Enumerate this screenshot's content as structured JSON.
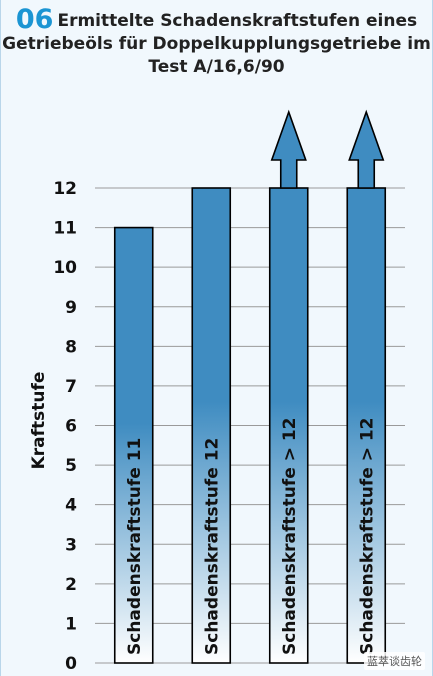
{
  "figure_number": "06",
  "title_line1": "Ermittelte Schadenskraftstufen eines",
  "title_line2": "Getriebeöls für Doppelkupplungsgetriebe im",
  "title_line3": "Test A/16,6/90",
  "watermark": "蓝萃谈齿轮",
  "colors": {
    "accent": "#1b95d3",
    "bar_dark": "#3f8cc1",
    "bar_light": "#ffffff",
    "grid": "#9a9a9a"
  },
  "chart_data": {
    "type": "bar",
    "title": "Ermittelte Schadenskraftstufen eines Getriebeöls für Doppelkupplungsgetriebe im Test A/16,6/90",
    "ylabel": "Kraftstufe",
    "ylim": [
      0,
      12
    ],
    "yticks": [
      0,
      1,
      2,
      3,
      4,
      5,
      6,
      7,
      8,
      9,
      10,
      11,
      12
    ],
    "grid": true,
    "categories": [
      "Schadenskraftstufe 11",
      "Schadenskraftstufe 12",
      "Schadenskraftstufe > 12",
      "Schadenskraftstufe > 12"
    ],
    "values": [
      11,
      12,
      12,
      12
    ],
    "exceeds_scale": [
      false,
      false,
      true,
      true
    ]
  }
}
